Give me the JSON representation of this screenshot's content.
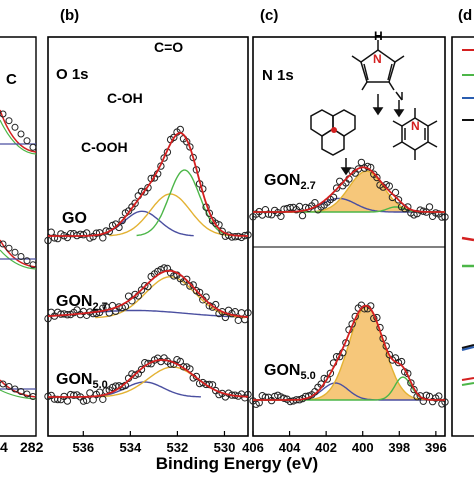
{
  "xlabel": "Binding Energy (eV)",
  "colors": {
    "frame": "#000000",
    "marker": "#222222",
    "fit": "#d42020",
    "green": "#4cb648",
    "orange": "#e3b233",
    "blue": "#4a4fa0",
    "fill": "#f5c16c"
  },
  "panels": [
    {
      "id": "a",
      "tag": "",
      "title": "C",
      "xticks": [
        "4",
        "282"
      ],
      "samples": []
    },
    {
      "id": "b",
      "tag": "(b)",
      "title": "O 1s",
      "xticks": [
        "536",
        "534",
        "532",
        "530"
      ],
      "samples": [
        "GO",
        "GON2.7",
        "GON5.0"
      ],
      "peak_labels": [
        "C-OOH",
        "C-OH",
        "C=O"
      ]
    },
    {
      "id": "c",
      "tag": "(c)",
      "title": "N 1s",
      "xticks": [
        "406",
        "404",
        "402",
        "400",
        "398",
        "396"
      ],
      "samples": [
        "GON2.7",
        "GON5.0"
      ],
      "structure_label": "H"
    },
    {
      "id": "d",
      "tag": "(d",
      "title": "",
      "xticks": [],
      "samples": []
    }
  ],
  "chart_data": [
    {
      "type": "scatter",
      "panel": "b",
      "title": "O 1s",
      "xlabel": "Binding Energy (eV)",
      "xlim": [
        537.5,
        529
      ],
      "x_reversed": true,
      "series": [
        {
          "name": "GO",
          "offset": 2.3,
          "components": [
            {
              "name": "C-OOH",
              "center": 533.5,
              "height": 0.33,
              "width": 0.75,
              "color": "blue"
            },
            {
              "name": "C-OH",
              "center": 532.3,
              "height": 0.56,
              "width": 0.85,
              "color": "orange"
            },
            {
              "name": "C=O",
              "center": 531.7,
              "height": 0.88,
              "width": 0.65,
              "color": "green"
            }
          ]
        },
        {
          "name": "GON2.7",
          "offset": 1.15,
          "components": [
            {
              "center": 533.8,
              "height": 0.1,
              "width": 2.2,
              "color": "blue"
            },
            {
              "center": 532.3,
              "height": 0.55,
              "width": 1.05,
              "color": "orange"
            }
          ]
        },
        {
          "name": "GON5.0",
          "offset": 0.0,
          "components": [
            {
              "center": 533.4,
              "height": 0.2,
              "width": 0.8,
              "color": "blue"
            },
            {
              "center": 532.2,
              "height": 0.4,
              "width": 1.05,
              "color": "orange"
            }
          ]
        }
      ]
    },
    {
      "type": "scatter",
      "panel": "c",
      "title": "N 1s",
      "xlabel": "Binding Energy (eV)",
      "xlim": [
        406,
        395.5
      ],
      "x_reversed": true,
      "series": [
        {
          "name": "GON2.7",
          "offset": 1.5,
          "components": [
            {
              "center": 401.3,
              "height": 0.16,
              "width": 0.9,
              "color": "blue"
            },
            {
              "center": 399.8,
              "height": 0.48,
              "width": 0.95,
              "color": "orange"
            },
            {
              "center": 398.2,
              "height": 0.06,
              "width": 0.45,
              "color": "green"
            }
          ]
        },
        {
          "name": "GON5.0",
          "offset": 0.0,
          "components": [
            {
              "center": 401.5,
              "height": 0.2,
              "width": 0.7,
              "color": "blue"
            },
            {
              "center": 399.8,
              "height": 1.1,
              "width": 0.95,
              "color": "orange"
            },
            {
              "center": 397.8,
              "height": 0.27,
              "width": 0.45,
              "color": "green"
            }
          ]
        }
      ]
    }
  ]
}
